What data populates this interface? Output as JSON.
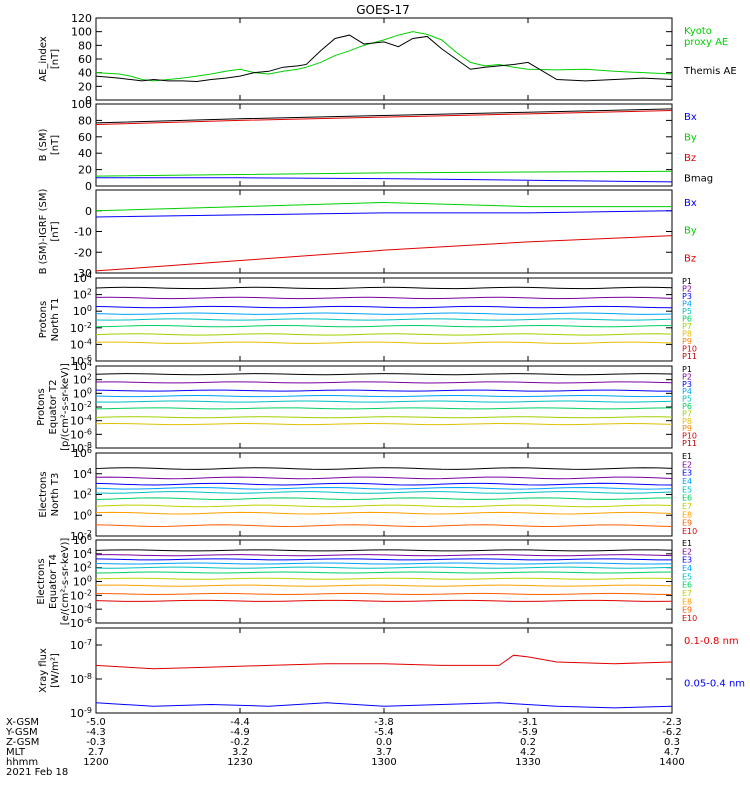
{
  "title": "GOES-17",
  "colors": {
    "black": "#000000",
    "green": "#00d000",
    "blue": "#0000ff",
    "red": "#e00000",
    "p": [
      "#000000",
      "#7a00a0",
      "#0000ff",
      "#00a0ff",
      "#00c0c0",
      "#00d060",
      "#a0d000",
      "#e0c000",
      "#ff8000",
      "#e00000",
      "#c00000"
    ],
    "e": [
      "#000000",
      "#7a00a0",
      "#0000ff",
      "#00a0ff",
      "#00c0c0",
      "#00d060",
      "#c0d000",
      "#ffa000",
      "#ff6000",
      "#e00000"
    ]
  },
  "chart_data": [
    {
      "type": "line",
      "id": "ae",
      "ylabel": "AE_index\n[nT]",
      "ylim": [
        0,
        120
      ],
      "yticks": [
        "0",
        "20",
        "40",
        "60",
        "80",
        "100",
        "120"
      ],
      "log": false,
      "series": [
        {
          "name": "Kyoto proxy AE",
          "label_lines": [
            "Kyoto",
            "proxy AE"
          ],
          "color": "green",
          "x": [
            0,
            8,
            12,
            16,
            20,
            25,
            30,
            35,
            40,
            45,
            50,
            55,
            60,
            65,
            70,
            73,
            78,
            83,
            88,
            93,
            100,
            105,
            110,
            115,
            120,
            125,
            130,
            135,
            140,
            145,
            150,
            160,
            170,
            180,
            190,
            200
          ],
          "y": [
            40,
            38,
            35,
            30,
            28,
            30,
            32,
            35,
            38,
            42,
            45,
            40,
            38,
            42,
            45,
            48,
            55,
            65,
            72,
            80,
            88,
            95,
            100,
            96,
            88,
            70,
            55,
            50,
            52,
            48,
            45,
            44,
            45,
            42,
            40,
            38
          ]
        },
        {
          "name": "Themis AE",
          "label_lines": [
            "Themis AE"
          ],
          "color": "black",
          "x": [
            0,
            8,
            12,
            16,
            20,
            25,
            30,
            35,
            40,
            45,
            50,
            55,
            60,
            65,
            70,
            73,
            78,
            83,
            88,
            93,
            100,
            105,
            110,
            115,
            120,
            125,
            130,
            135,
            140,
            145,
            150,
            160,
            170,
            180,
            190,
            200
          ],
          "y": [
            35,
            32,
            30,
            28,
            30,
            28,
            28,
            27,
            30,
            32,
            35,
            40,
            42,
            48,
            50,
            52,
            72,
            90,
            95,
            82,
            85,
            78,
            90,
            93,
            75,
            60,
            45,
            48,
            50,
            52,
            55,
            30,
            28,
            30,
            32,
            30
          ]
        }
      ]
    },
    {
      "type": "line",
      "id": "bsm",
      "ylabel": "B (SM)\n[nT]",
      "ylim": [
        0,
        100
      ],
      "yticks": [
        "0",
        "20",
        "40",
        "60",
        "80",
        "100"
      ],
      "log": false,
      "series": [
        {
          "name": "Bx",
          "color": "blue",
          "x": [
            0,
            50,
            100,
            150,
            200
          ],
          "y": [
            10,
            10,
            9,
            7,
            5
          ]
        },
        {
          "name": "By",
          "color": "green",
          "x": [
            0,
            50,
            100,
            150,
            200
          ],
          "y": [
            12,
            14,
            16,
            17,
            18
          ]
        },
        {
          "name": "Bz",
          "color": "red",
          "x": [
            0,
            50,
            100,
            150,
            200
          ],
          "y": [
            75,
            80,
            84,
            88,
            92
          ]
        },
        {
          "name": "Bmag",
          "color": "black",
          "x": [
            0,
            50,
            100,
            150,
            200
          ],
          "y": [
            77,
            82,
            86,
            90,
            94
          ]
        }
      ]
    },
    {
      "type": "line",
      "id": "bigrf",
      "ylabel": "B (SM)-IGRF (SM)\n[nT]",
      "ylim": [
        -30,
        10
      ],
      "yticks": [
        "-30",
        "-20",
        "-10",
        "0"
      ],
      "ytickvals": [
        -30,
        -20,
        -10,
        0
      ],
      "log": false,
      "series": [
        {
          "name": "Bx",
          "color": "blue",
          "x": [
            0,
            50,
            100,
            150,
            200
          ],
          "y": [
            -3,
            -2,
            -1,
            -1,
            0
          ]
        },
        {
          "name": "By",
          "color": "green",
          "x": [
            0,
            50,
            100,
            150,
            200
          ],
          "y": [
            0,
            2,
            4,
            2,
            2
          ]
        },
        {
          "name": "Bz",
          "color": "red",
          "x": [
            0,
            50,
            100,
            150,
            200
          ],
          "y": [
            -29,
            -24,
            -19,
            -15,
            -12
          ]
        }
      ]
    },
    {
      "type": "line",
      "id": "pn",
      "ylabel": "Protons\nNorth T1",
      "log": true,
      "ylim": [
        -6,
        4
      ],
      "yticks": [
        "10^4",
        "10^2",
        "10^0",
        "10^-2",
        "10^-4",
        "10^-6"
      ],
      "ytickvals": [
        4,
        2,
        0,
        -2,
        -4,
        -6
      ],
      "channels": [
        "P1",
        "P2",
        "P3",
        "P4",
        "P5",
        "P6",
        "P7",
        "P8",
        "P9",
        "P10",
        "P11"
      ],
      "levels": [
        2.8,
        1.6,
        0.5,
        -0.3,
        -1.0,
        -1.8,
        -2.8,
        -3.8,
        -6.5,
        -7,
        -7.5
      ]
    },
    {
      "type": "line",
      "id": "pe",
      "ylabel": "Protons\nEquator T2\n[p/(cm²-s-sr-keV)]",
      "log": true,
      "ylim": [
        -8,
        4
      ],
      "yticks": [
        "10^4",
        "10^2",
        "10^0",
        "10^-2",
        "10^-4",
        "10^-6",
        "10^-8"
      ],
      "ytickvals": [
        4,
        2,
        0,
        -2,
        -4,
        -6,
        -8
      ],
      "channels": [
        "P1",
        "P2",
        "P3",
        "P4",
        "P5",
        "P6",
        "P7",
        "P8",
        "P9",
        "P10",
        "P11"
      ],
      "levels": [
        2.8,
        1.6,
        0.4,
        -0.4,
        -1.2,
        -2.2,
        -3.5,
        -4.5,
        -9,
        -9,
        -9
      ]
    },
    {
      "type": "line",
      "id": "en",
      "ylabel": "Electrons\nNorth T3",
      "log": true,
      "ylim": [
        -2,
        6
      ],
      "yticks": [
        "10^6",
        "10^4",
        "10^2",
        "10^0",
        "10^-2"
      ],
      "ytickvals": [
        6,
        4,
        2,
        0,
        -2
      ],
      "channels": [
        "E1",
        "E2",
        "E3",
        "E4",
        "E5",
        "E6",
        "E7",
        "E8",
        "E9",
        "E10"
      ],
      "levels": [
        4.5,
        3.6,
        3.0,
        2.6,
        2.2,
        1.6,
        0.9,
        0.2,
        -1.0,
        -2.2
      ]
    },
    {
      "type": "line",
      "id": "ee",
      "ylabel": "Electrons\nEquator T4\n[e/(cm²-s-sr-keV)]",
      "log": true,
      "ylim": [
        -6,
        6
      ],
      "yticks": [
        "10^6",
        "10^4",
        "10^2",
        "10^0",
        "10^-2",
        "10^-4",
        "10^-6"
      ],
      "ytickvals": [
        6,
        4,
        2,
        0,
        -2,
        -4,
        -6
      ],
      "channels": [
        "E1",
        "E2",
        "E3",
        "E4",
        "E5",
        "E6",
        "E7",
        "E8",
        "E9",
        "E10"
      ],
      "levels": [
        4.5,
        3.8,
        3.2,
        2.6,
        2.0,
        1.3,
        0.4,
        -0.6,
        -1.8,
        -2.8
      ]
    },
    {
      "type": "line",
      "id": "xray",
      "ylabel": "Xray flux\n[W/m²]",
      "log": true,
      "ylim": [
        -9,
        -6.5
      ],
      "yticks": [
        "10^-7",
        "10^-8",
        "10^-9"
      ],
      "ytickvals": [
        -7,
        -8,
        -9
      ],
      "series": [
        {
          "name": "0.1-0.8 nm",
          "color": "red",
          "x": [
            0,
            20,
            40,
            60,
            80,
            100,
            120,
            140,
            145,
            150,
            160,
            180,
            200
          ],
          "y": [
            -7.6,
            -7.7,
            -7.65,
            -7.6,
            -7.55,
            -7.55,
            -7.6,
            -7.6,
            -7.3,
            -7.35,
            -7.5,
            -7.55,
            -7.5
          ]
        },
        {
          "name": "0.05-0.4 nm",
          "color": "blue",
          "x": [
            0,
            20,
            40,
            60,
            80,
            100,
            120,
            140,
            160,
            180,
            200
          ],
          "y": [
            -8.7,
            -8.8,
            -8.75,
            -8.8,
            -8.7,
            -8.8,
            -8.75,
            -8.7,
            -8.8,
            -8.85,
            -8.8
          ]
        }
      ]
    }
  ],
  "xaxis": {
    "row_labels": [
      "X-GSM",
      "Y-GSM",
      "Z-GSM",
      "MLT",
      "hhmm",
      "2021 Feb 18"
    ],
    "columns": [
      [
        "-5.0",
        "-4.3",
        "-0.3",
        "2.7",
        "1200"
      ],
      [
        "-4.4",
        "-4.9",
        "-0.2",
        "3.2",
        "1230"
      ],
      [
        "-3.8",
        "-5.4",
        "0.0",
        "3.7",
        "1300"
      ],
      [
        "-3.1",
        "-5.9",
        "0.2",
        "4.2",
        "1330"
      ],
      [
        "-2.3",
        "-6.2",
        "0.3",
        "4.7",
        "1400"
      ]
    ]
  }
}
